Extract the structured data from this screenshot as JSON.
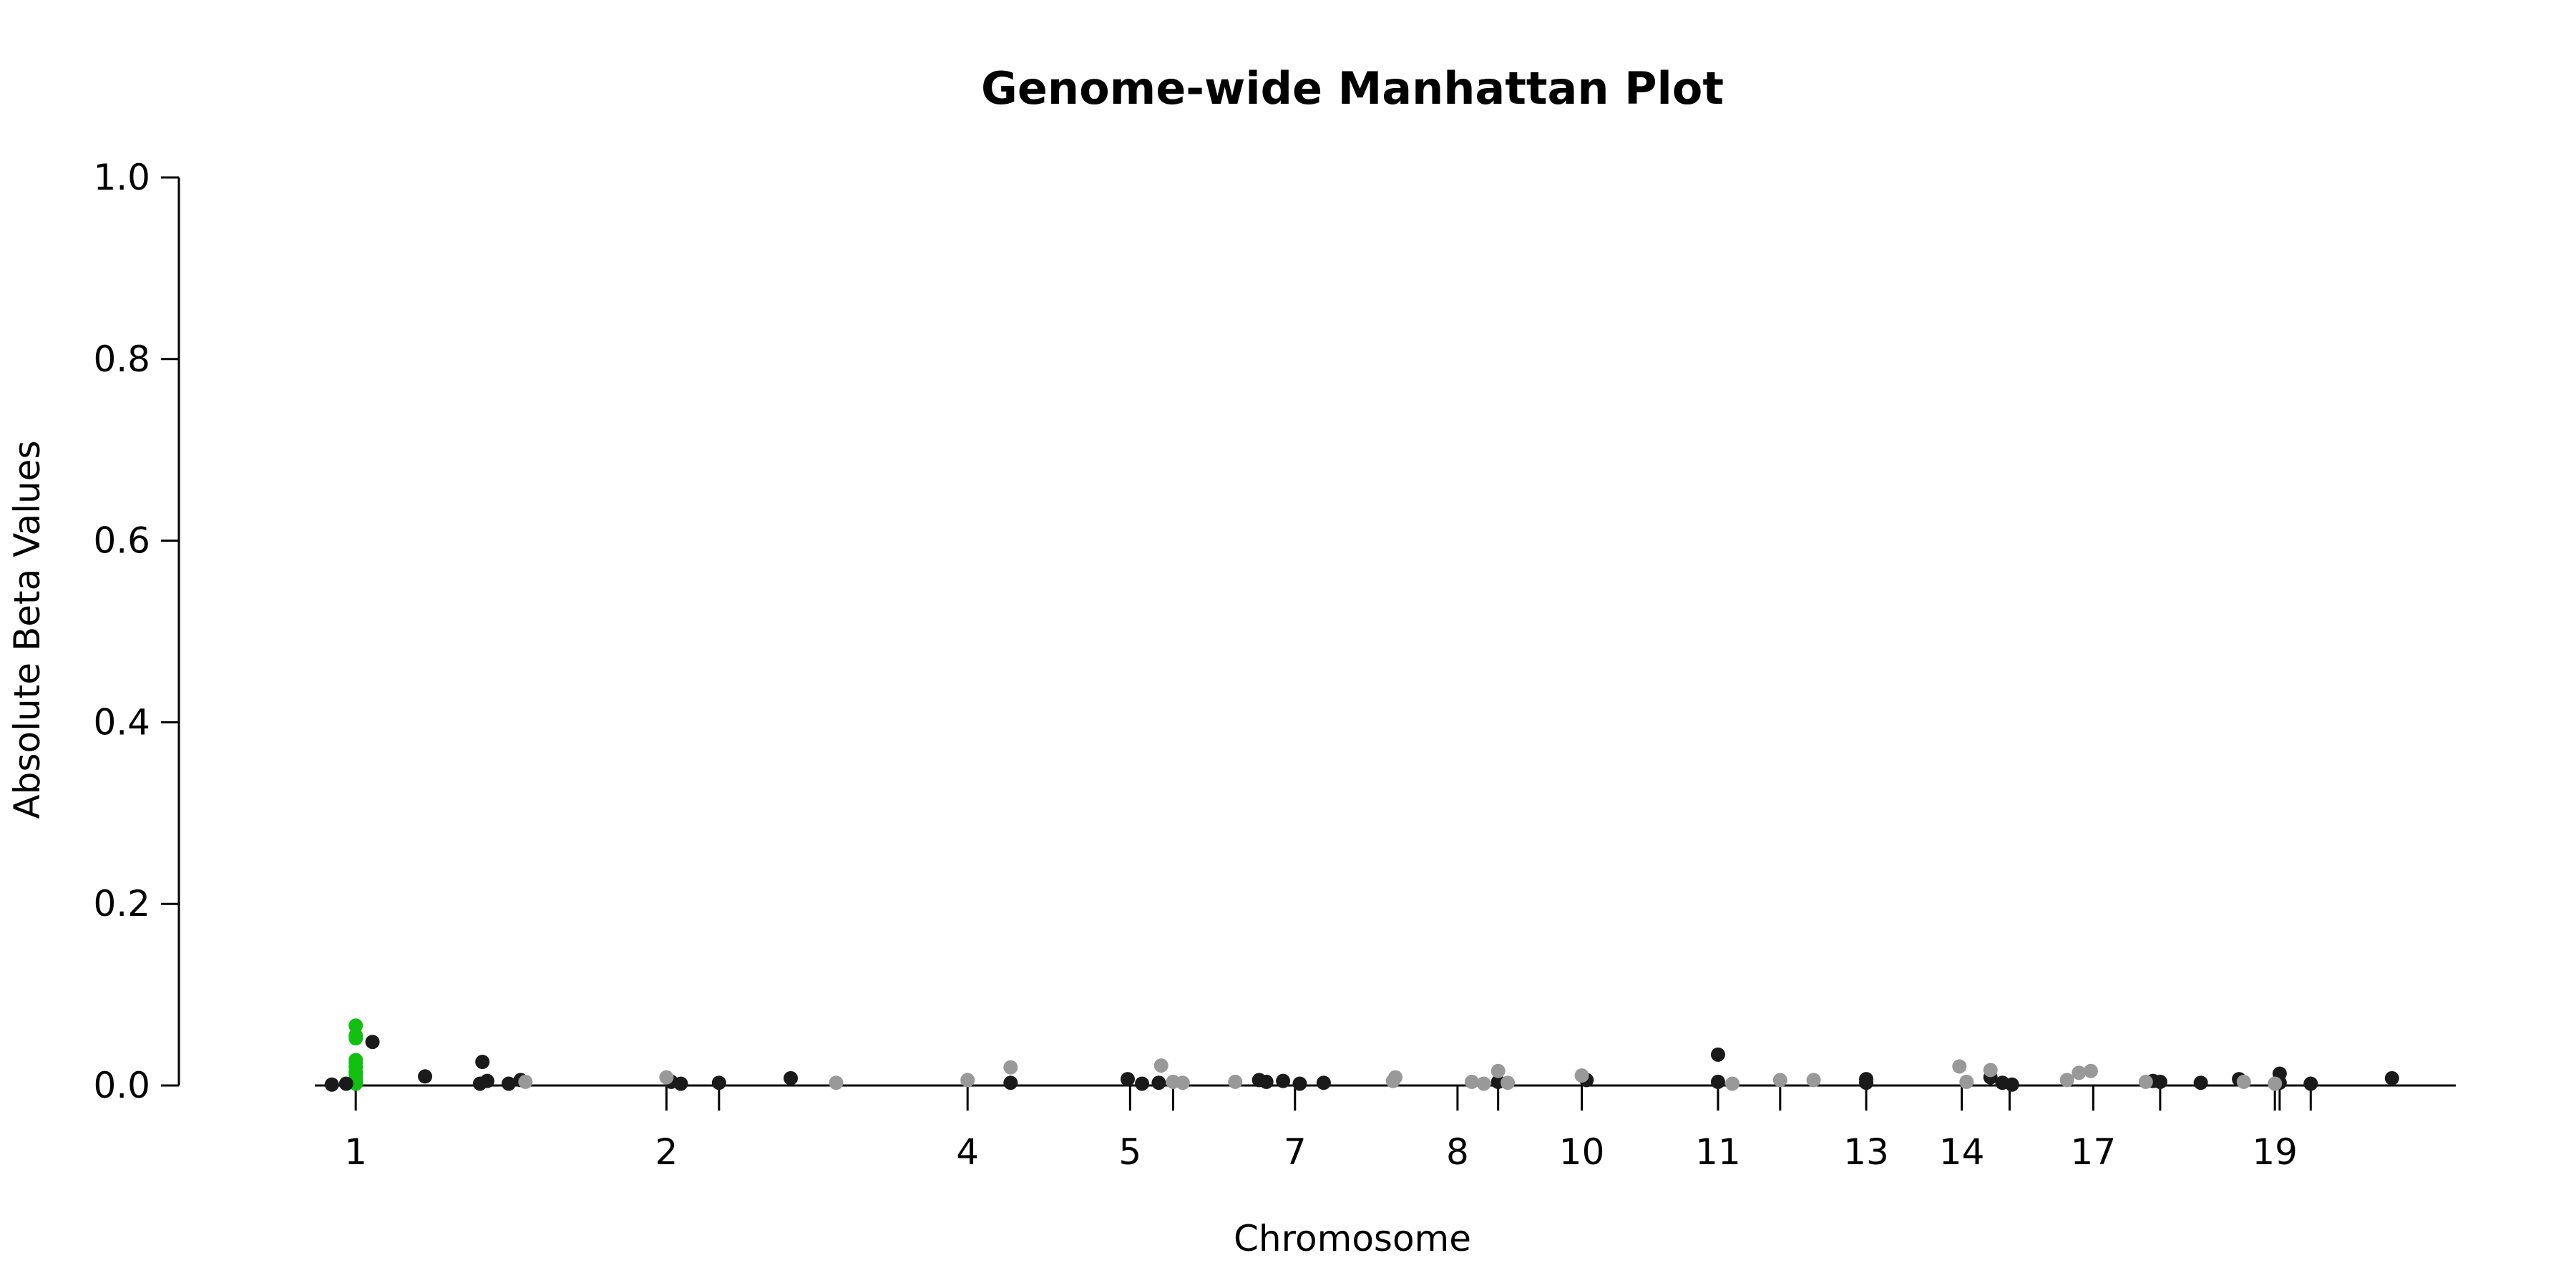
{
  "chart_data": {
    "type": "scatter",
    "title": "Genome-wide Manhattan Plot",
    "xlabel": "Chromosome",
    "ylabel": "Absolute Beta Values",
    "ylim": [
      0,
      1
    ],
    "yticks": [
      "0.0",
      "0.2",
      "0.4",
      "0.6",
      "0.8",
      "1.0"
    ],
    "xlim": [
      0,
      100
    ],
    "xticks": [
      {
        "x": 7.4,
        "label": "1"
      },
      {
        "x": 20.4,
        "label": "2"
      },
      {
        "x": 22.6,
        "label": ""
      },
      {
        "x": 33.0,
        "label": "4"
      },
      {
        "x": 39.8,
        "label": "5"
      },
      {
        "x": 41.6,
        "label": ""
      },
      {
        "x": 46.7,
        "label": "7"
      },
      {
        "x": 53.5,
        "label": "8"
      },
      {
        "x": 55.2,
        "label": ""
      },
      {
        "x": 58.7,
        "label": "10"
      },
      {
        "x": 64.4,
        "label": "11"
      },
      {
        "x": 67.0,
        "label": ""
      },
      {
        "x": 70.6,
        "label": "13"
      },
      {
        "x": 74.6,
        "label": "14"
      },
      {
        "x": 76.6,
        "label": ""
      },
      {
        "x": 80.1,
        "label": "17"
      },
      {
        "x": 82.9,
        "label": ""
      },
      {
        "x": 87.7,
        "label": "19"
      },
      {
        "x": 87.9,
        "label": ""
      },
      {
        "x": 89.2,
        "label": ""
      }
    ],
    "grid": false,
    "colors": {
      "dark": "#1a1a1a",
      "light": "#999999",
      "highlight": "#11c011"
    },
    "series": [
      {
        "color_key": "highlight",
        "points": [
          {
            "x": 7.4,
            "y": 0.066
          },
          {
            "x": 7.4,
            "y": 0.055
          },
          {
            "x": 7.4,
            "y": 0.052
          },
          {
            "x": 7.4,
            "y": 0.028
          },
          {
            "x": 7.4,
            "y": 0.025
          },
          {
            "x": 7.4,
            "y": 0.02
          },
          {
            "x": 7.4,
            "y": 0.015
          },
          {
            "x": 7.4,
            "y": 0.012
          },
          {
            "x": 7.4,
            "y": 0.008
          },
          {
            "x": 7.4,
            "y": 0.005
          },
          {
            "x": 7.4,
            "y": 0.002
          }
        ]
      },
      {
        "color_key": "dark",
        "points": [
          {
            "x": 6.4,
            "y": 0.001
          },
          {
            "x": 7.0,
            "y": 0.002
          },
          {
            "x": 8.1,
            "y": 0.048
          },
          {
            "x": 10.3,
            "y": 0.01
          },
          {
            "x": 12.7,
            "y": 0.026
          },
          {
            "x": 12.9,
            "y": 0.005
          },
          {
            "x": 12.6,
            "y": 0.002
          },
          {
            "x": 13.8,
            "y": 0.002
          },
          {
            "x": 14.3,
            "y": 0.006
          },
          {
            "x": 20.6,
            "y": 0.004
          },
          {
            "x": 21.0,
            "y": 0.002
          },
          {
            "x": 22.6,
            "y": 0.003
          },
          {
            "x": 25.6,
            "y": 0.008
          },
          {
            "x": 34.8,
            "y": 0.003
          },
          {
            "x": 39.7,
            "y": 0.007
          },
          {
            "x": 40.3,
            "y": 0.002
          },
          {
            "x": 41.0,
            "y": 0.003
          },
          {
            "x": 45.2,
            "y": 0.006
          },
          {
            "x": 45.5,
            "y": 0.004
          },
          {
            "x": 46.2,
            "y": 0.005
          },
          {
            "x": 46.9,
            "y": 0.002
          },
          {
            "x": 47.9,
            "y": 0.003
          },
          {
            "x": 55.2,
            "y": 0.004
          },
          {
            "x": 58.9,
            "y": 0.006
          },
          {
            "x": 64.4,
            "y": 0.034
          },
          {
            "x": 64.4,
            "y": 0.004
          },
          {
            "x": 70.6,
            "y": 0.007
          },
          {
            "x": 70.6,
            "y": 0.003
          },
          {
            "x": 75.8,
            "y": 0.009
          },
          {
            "x": 76.3,
            "y": 0.003
          },
          {
            "x": 76.7,
            "y": 0.001
          },
          {
            "x": 82.6,
            "y": 0.005
          },
          {
            "x": 82.9,
            "y": 0.004
          },
          {
            "x": 84.6,
            "y": 0.003
          },
          {
            "x": 86.2,
            "y": 0.007
          },
          {
            "x": 87.9,
            "y": 0.013
          },
          {
            "x": 87.9,
            "y": 0.003
          },
          {
            "x": 89.2,
            "y": 0.002
          },
          {
            "x": 92.6,
            "y": 0.008
          }
        ]
      },
      {
        "color_key": "light",
        "points": [
          {
            "x": 14.5,
            "y": 0.004
          },
          {
            "x": 20.4,
            "y": 0.009
          },
          {
            "x": 27.5,
            "y": 0.003
          },
          {
            "x": 33.0,
            "y": 0.006
          },
          {
            "x": 34.8,
            "y": 0.02
          },
          {
            "x": 41.1,
            "y": 0.022
          },
          {
            "x": 41.6,
            "y": 0.004
          },
          {
            "x": 42.0,
            "y": 0.003
          },
          {
            "x": 44.2,
            "y": 0.004
          },
          {
            "x": 50.9,
            "y": 0.009
          },
          {
            "x": 50.8,
            "y": 0.005
          },
          {
            "x": 54.1,
            "y": 0.004
          },
          {
            "x": 54.6,
            "y": 0.002
          },
          {
            "x": 55.6,
            "y": 0.003
          },
          {
            "x": 55.2,
            "y": 0.016
          },
          {
            "x": 58.7,
            "y": 0.011
          },
          {
            "x": 65.0,
            "y": 0.002
          },
          {
            "x": 67.0,
            "y": 0.006
          },
          {
            "x": 68.4,
            "y": 0.006
          },
          {
            "x": 74.5,
            "y": 0.021
          },
          {
            "x": 74.8,
            "y": 0.004
          },
          {
            "x": 75.8,
            "y": 0.017
          },
          {
            "x": 79.0,
            "y": 0.006
          },
          {
            "x": 79.5,
            "y": 0.014
          },
          {
            "x": 80.0,
            "y": 0.016
          },
          {
            "x": 82.3,
            "y": 0.004
          },
          {
            "x": 86.4,
            "y": 0.004
          },
          {
            "x": 87.7,
            "y": 0.002
          }
        ]
      }
    ]
  }
}
